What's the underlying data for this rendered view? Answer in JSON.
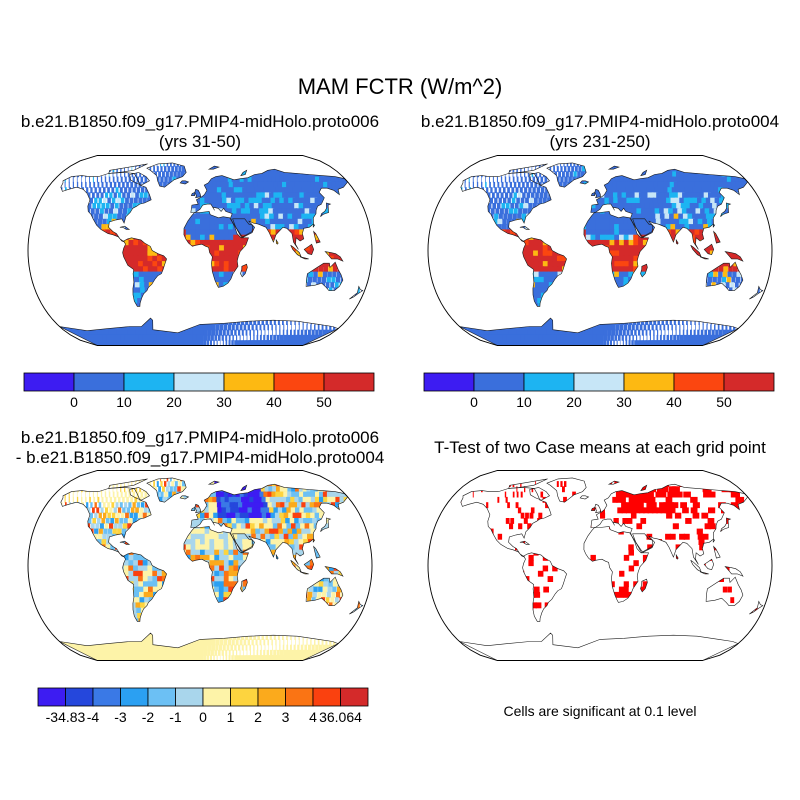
{
  "figure": {
    "main_title": "MAM FCTR (W/m^2)",
    "note": "Cells are significant at 0.1 level"
  },
  "colors": {
    "coast": "#1a1a1a",
    "land_default": "#ffffff",
    "case_scale": [
      "#3d1cf2",
      "#3a6fdc",
      "#1db4f2",
      "#c7e6f7",
      "#fdb912",
      "#fb4610",
      "#d42a2a"
    ],
    "diff_scale": [
      "#3d1cf2",
      "#2547dc",
      "#3a79e6",
      "#2ba0f2",
      "#6cc0f4",
      "#a9d6ec",
      "#fdf3a8",
      "#fdd43f",
      "#fbaa1c",
      "#fa7414",
      "#fa410f",
      "#d42a2a"
    ],
    "ttest": "#ff0000"
  },
  "chart_data": [
    {
      "type": "heatmap",
      "id": "case1",
      "title_line1": "b.e21.B1850.f09_g17.PMIP4-midHolo.proto006",
      "title_line2": "(yrs 31-50)",
      "colorbar_labels": [
        "0",
        "10",
        "20",
        "30",
        "40",
        "50"
      ],
      "levels": [
        0,
        10,
        20,
        30,
        40,
        50
      ],
      "units": "W/m^2"
    },
    {
      "type": "heatmap",
      "id": "case2",
      "title_line1": "b.e21.B1850.f09_g17.PMIP4-midHolo.proto004",
      "title_line2": "(yrs 231-250)",
      "colorbar_labels": [
        "0",
        "10",
        "20",
        "30",
        "40",
        "50"
      ],
      "levels": [
        0,
        10,
        20,
        30,
        40,
        50
      ],
      "units": "W/m^2"
    },
    {
      "type": "heatmap",
      "id": "diff",
      "title_line1": "b.e21.B1850.f09_g17.PMIP4-midHolo.proto006",
      "title_line2": "- b.e21.B1850.f09_g17.PMIP4-midHolo.proto004",
      "colorbar_labels": [
        "-34.83",
        "-4",
        "-3",
        "-2",
        "-1",
        "0",
        "1",
        "2",
        "3",
        "4",
        "36.064"
      ],
      "levels": [
        -34.83,
        -4,
        -3,
        -2,
        -1,
        0,
        1,
        2,
        3,
        4,
        36.064
      ],
      "units": "W/m^2"
    },
    {
      "type": "heatmap",
      "id": "ttest",
      "title_line1": "T-Test of two Case means at each grid point",
      "significance_level": 0.1
    }
  ]
}
